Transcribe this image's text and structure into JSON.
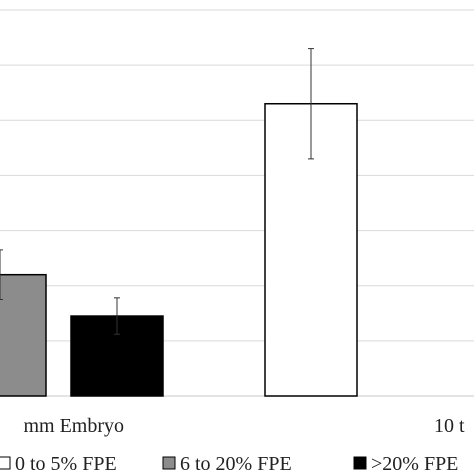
{
  "chart_data": {
    "type": "bar",
    "categories": [
      "mm Embryo",
      "10 t"
    ],
    "series": [
      {
        "name": "0 to 5% FPE",
        "color": "#ffffff",
        "values": [
          null,
          5.3
        ],
        "errors": [
          null,
          1.0
        ]
      },
      {
        "name": "6 to 20% FPE",
        "color": "#8c8c8c",
        "values": [
          2.2,
          null
        ],
        "errors": [
          0.45,
          null
        ]
      },
      {
        "name": ">20% FPE",
        "color": "#000000",
        "values": [
          1.45,
          null
        ],
        "errors": [
          0.33,
          null
        ]
      }
    ],
    "ylim": [
      0,
      7
    ],
    "grid": true,
    "legend_position": "bottom",
    "xlabel": "",
    "ylabel": "",
    "title": ""
  }
}
